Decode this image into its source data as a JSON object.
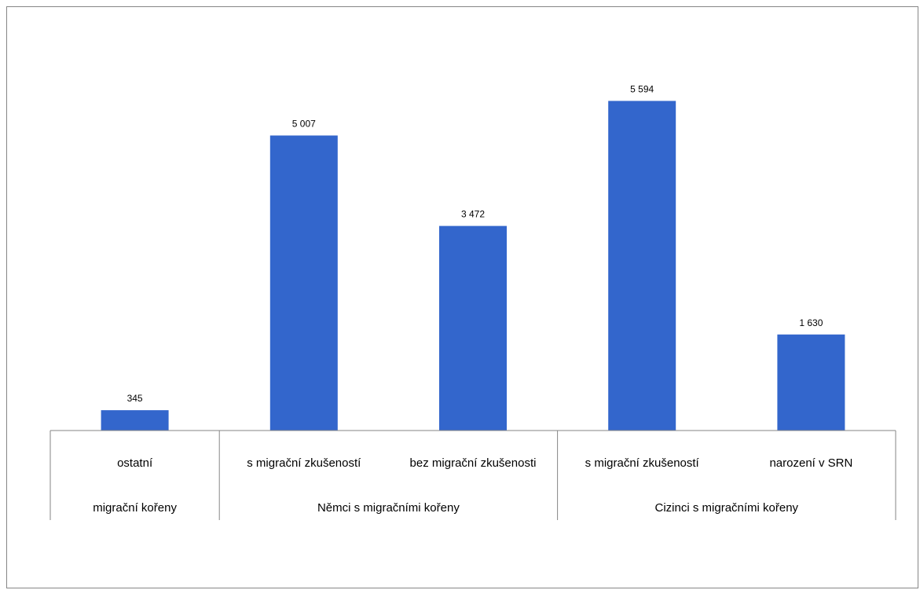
{
  "chart_data": {
    "type": "bar",
    "categories": [
      "ostatní",
      "s migrační zkušeností",
      "bez migrační zkušenosti",
      "s migrační zkušeností",
      "narození v SRN"
    ],
    "groups": [
      {
        "label": "migrační kořeny",
        "categories": [
          "ostatní"
        ]
      },
      {
        "label": "Němci s migračními kořeny",
        "categories": [
          "s migrační zkušeností",
          "bez migrační zkušenosti"
        ]
      },
      {
        "label": "Cizinci s migračními kořeny",
        "categories": [
          "s migrační zkušeností",
          "narození v SRN"
        ]
      }
    ],
    "values": [
      345,
      5007,
      3472,
      5594,
      1630
    ],
    "data_labels": [
      "345",
      "5 007",
      "3 472",
      "5 594",
      "1 630"
    ],
    "bar_color": "#3366cc",
    "ylim": [
      0,
      6000
    ],
    "grid": false,
    "legend": "none"
  }
}
